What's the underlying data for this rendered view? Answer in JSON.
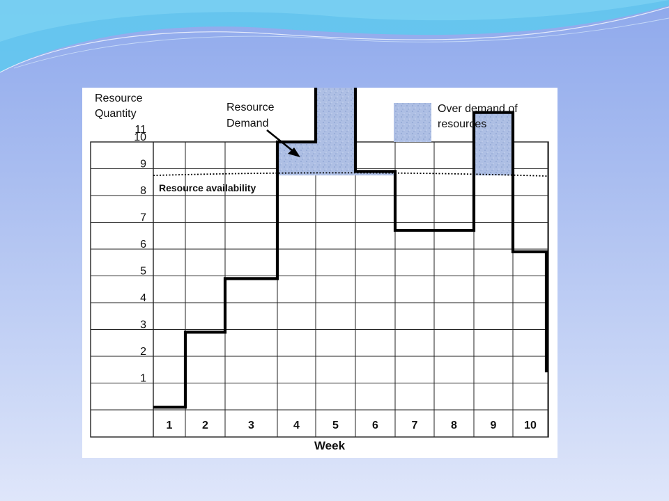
{
  "colors": {
    "background_top": "#8fa9ec",
    "background_bottom": "#dfe6fa",
    "wave": "#4cc8ee",
    "shade_fill": "#a9bfe6",
    "grid": "#222222",
    "demand_line": "#000000"
  },
  "chart_data": {
    "type": "line",
    "step": true,
    "xlabel": "Week",
    "ylabel_lines": [
      "Resource",
      "Quantity"
    ],
    "y_top_label": "11",
    "categories": [
      "1",
      "2",
      "3",
      "4",
      "5",
      "6",
      "7",
      "8",
      "9",
      "10"
    ],
    "yticks": [
      "1",
      "2",
      "3",
      "4",
      "5",
      "6",
      "7",
      "8",
      "9",
      "10"
    ],
    "ylim": [
      0,
      11
    ],
    "grid": true,
    "series": [
      {
        "name": "Resource Demand",
        "values": [
          0.1,
          2.9,
          4.9,
          10.0,
          12.1,
          8.9,
          6.7,
          6.7,
          11.1,
          5.9
        ],
        "end_value": 1.4
      }
    ],
    "availability": {
      "label": "Resource availability",
      "value": 8.75,
      "line_style": "dotted"
    },
    "annotations": {
      "demand": [
        "Resource",
        "Demand"
      ],
      "over_demand_legend": [
        "Over demand of",
        "resources"
      ]
    }
  }
}
